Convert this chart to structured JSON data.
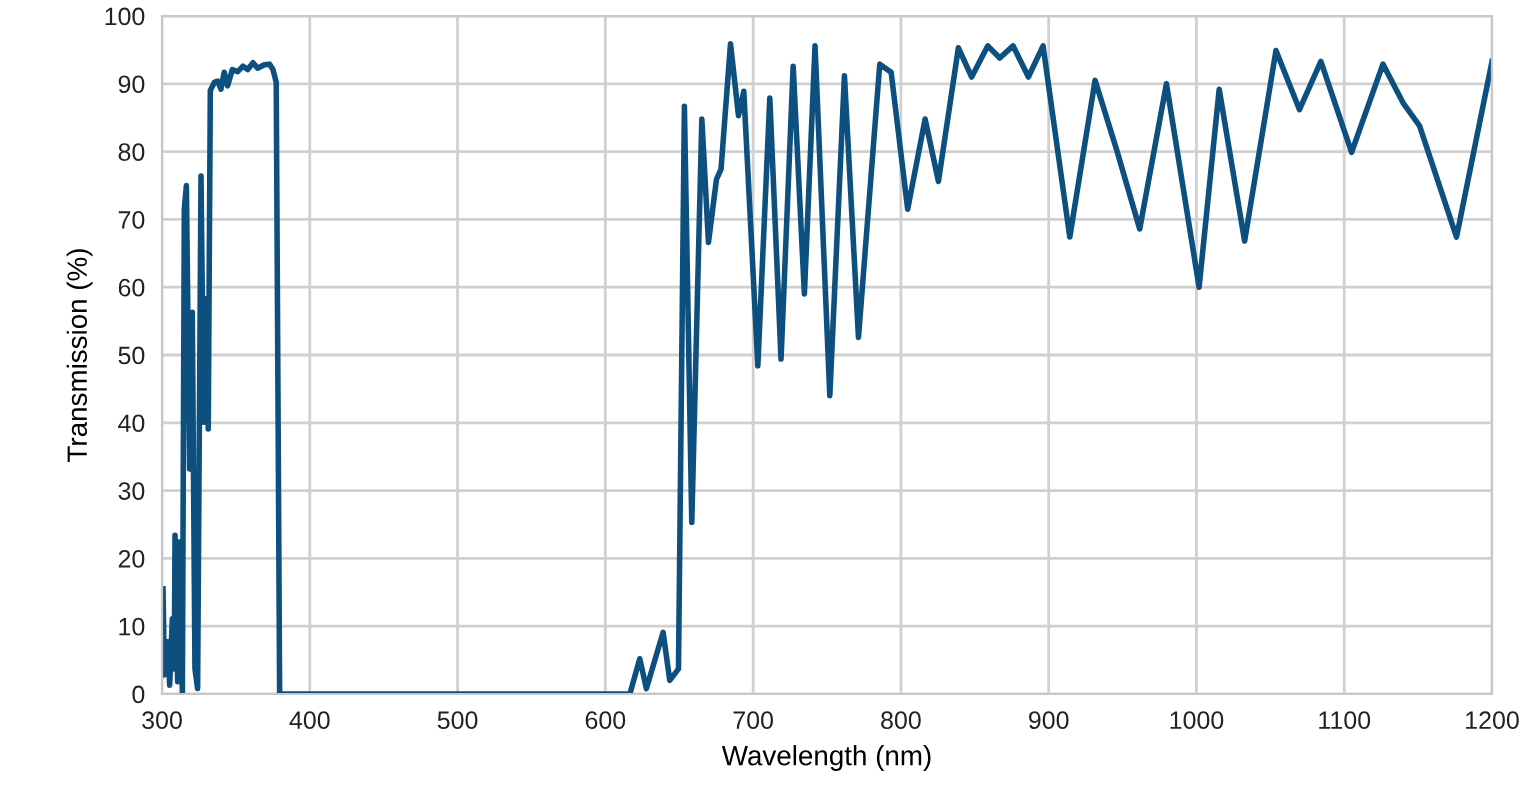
{
  "chart_data": {
    "type": "line",
    "xlabel": "Wavelength (nm)",
    "ylabel": "Transmission (%)",
    "xlim": [
      300,
      1200
    ],
    "ylim": [
      0,
      100
    ],
    "xticks": [
      300,
      400,
      500,
      600,
      700,
      800,
      900,
      1000,
      1100,
      1200
    ],
    "yticks": [
      0,
      10,
      20,
      30,
      40,
      50,
      60,
      70,
      80,
      90,
      100
    ],
    "grid": true,
    "marker": "none",
    "line_style": "solid",
    "series": [
      {
        "color": "#0d4f7e",
        "x": [
          300.7,
          301.6,
          303.8,
          305.2,
          307,
          308.3,
          308.8,
          310.6,
          311.5,
          313.8,
          315.1,
          316.5,
          318.7,
          320.5,
          322.3,
          324.1,
          326.4,
          328.2,
          329.5,
          331.3,
          332.7,
          335.4,
          337.7,
          339.9,
          342.1,
          344.4,
          347.6,
          351.2,
          354.8,
          358,
          361.6,
          364.7,
          369.2,
          372.8,
          375.1,
          377.3,
          379.6,
          500,
          616.6,
          623.3,
          627.8,
          639.1,
          643.6,
          649.5,
          653.5,
          658.5,
          665.3,
          669.8,
          675.2,
          678.3,
          684.7,
          690.1,
          693.7,
          703.2,
          711.3,
          718.9,
          727.1,
          734.7,
          741.9,
          751.9,
          761.8,
          771.3,
          785.7,
          793.4,
          804.6,
          816.4,
          825.4,
          838.9,
          847.9,
          858.8,
          866.9,
          875.9,
          886.3,
          896.2,
          914.3,
          931.4,
          945.8,
          961.6,
          979.7,
          1001.8,
          1015.4,
          1032.6,
          1053.8,
          1069.7,
          1084.2,
          1105,
          1126.2,
          1139.8,
          1151,
          1176,
          1200
        ],
        "values": [
          15.5,
          2.8,
          7.7,
          1.3,
          11.1,
          3.7,
          23.4,
          1.8,
          22.4,
          0,
          71.5,
          75,
          33.2,
          56.3,
          3.7,
          0.8,
          76.4,
          40.1,
          58.3,
          39.1,
          89,
          90.2,
          90.4,
          89.2,
          91.7,
          89.7,
          92.1,
          91.8,
          92.6,
          92.1,
          93.1,
          92.3,
          92.8,
          92.9,
          92.1,
          90.2,
          0,
          0,
          0,
          5.2,
          0.8,
          9.1,
          2.0,
          3.7,
          86.7,
          25.3,
          84.8,
          66.6,
          75.9,
          77.4,
          95.9,
          85.3,
          88.9,
          48.4,
          87.9,
          49.4,
          92.6,
          59.0,
          95.6,
          44.0,
          91.2,
          52.6,
          92.9,
          91.7,
          71.5,
          84.8,
          75.6,
          95.3,
          91.0,
          95.6,
          93.8,
          95.6,
          91.0,
          95.6,
          67.4,
          90.5,
          80.4,
          68.6,
          90,
          60,
          89.2,
          66.8,
          94.9,
          86.2,
          93.3,
          79.9,
          92.9,
          87.2,
          83.8,
          67.4,
          93.3
        ]
      }
    ]
  }
}
